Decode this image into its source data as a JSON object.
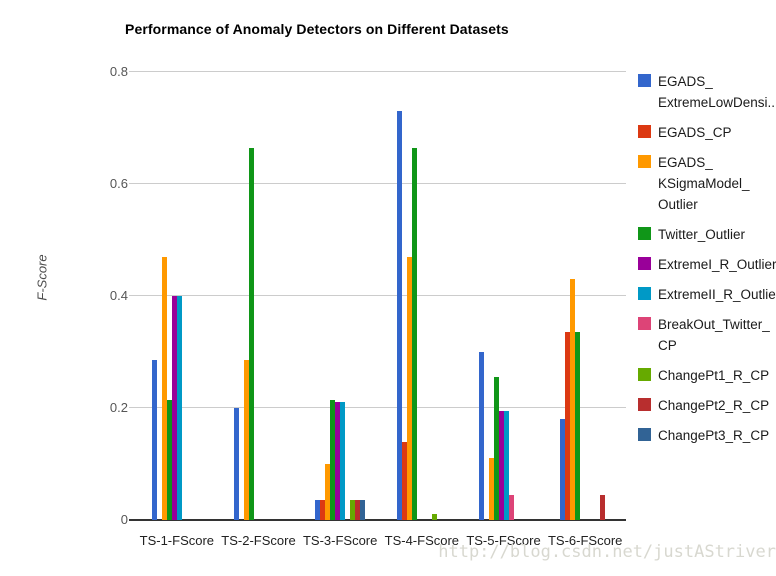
{
  "watermark": "http://blog.csdn.net/justAStriver",
  "chart_data": {
    "type": "bar",
    "title": "Performance of Anomaly Detectors on Different Datasets",
    "xlabel": "",
    "ylabel": "F-Score",
    "ylim": [
      0,
      0.8
    ],
    "yticks": [
      0,
      0.2,
      0.4,
      0.6,
      0.8
    ],
    "ytick_labels": [
      "0",
      "0.2",
      "0.4",
      "0.6",
      "0.8"
    ],
    "grid": true,
    "legend_position": "right",
    "background": "#ffffff",
    "gridline_color": "#cccccc",
    "axis_color": "#333333",
    "categories": [
      "TS-1-FScore",
      "TS-2-FScore",
      "TS-3-FScore",
      "TS-4-FScore",
      "TS-5-FScore",
      "TS-6-FScore"
    ],
    "series": [
      {
        "name": "EGADS_ExtremeLowDensi...",
        "legend_lines": "EGADS_\nExtremeLowDensi...",
        "color": "#3366cc",
        "values": [
          0.285,
          0.2,
          0.035,
          0.73,
          0.3,
          0.18
        ]
      },
      {
        "name": "EGADS_CP",
        "legend_lines": "EGADS_CP",
        "color": "#dc3912",
        "values": [
          0,
          0,
          0.035,
          0.14,
          0,
          0.335
        ]
      },
      {
        "name": "EGADS_KSigmaModel_Outlier",
        "legend_lines": "EGADS_\nKSigmaModel_\nOutlier",
        "color": "#ff9900",
        "values": [
          0.47,
          0.285,
          0.1,
          0.47,
          0.11,
          0.43
        ]
      },
      {
        "name": "Twitter_Outlier",
        "legend_lines": "Twitter_Outlier",
        "color": "#109618",
        "values": [
          0.215,
          0.665,
          0.215,
          0.665,
          0.255,
          0.335
        ]
      },
      {
        "name": "ExtremeI_R_Outlier",
        "legend_lines": "ExtremeI_R_Outlier",
        "color": "#990099",
        "values": [
          0.4,
          0,
          0.21,
          0,
          0.195,
          0
        ]
      },
      {
        "name": "ExtremeII_R_Outlier",
        "legend_lines": "ExtremeII_R_Outlier",
        "color": "#0099c6",
        "values": [
          0.4,
          0,
          0.21,
          0,
          0.195,
          0
        ]
      },
      {
        "name": "BreakOut_Twitter_CP",
        "legend_lines": "BreakOut_Twitter_\nCP",
        "color": "#dd4477",
        "values": [
          0,
          0,
          0,
          0,
          0.045,
          0
        ]
      },
      {
        "name": "ChangePt1_R_CP",
        "legend_lines": "ChangePt1_R_CP",
        "color": "#66aa00",
        "values": [
          0,
          0,
          0.035,
          0.01,
          0,
          0
        ]
      },
      {
        "name": "ChangePt2_R_CP",
        "legend_lines": "ChangePt2_R_CP",
        "color": "#b82e2e",
        "values": [
          0,
          0,
          0.035,
          0,
          0,
          0.045
        ]
      },
      {
        "name": "ChangePt3_R_CP",
        "legend_lines": "ChangePt3_R_CP",
        "color": "#316395",
        "values": [
          0,
          0,
          0.035,
          0,
          0,
          0
        ]
      }
    ]
  }
}
